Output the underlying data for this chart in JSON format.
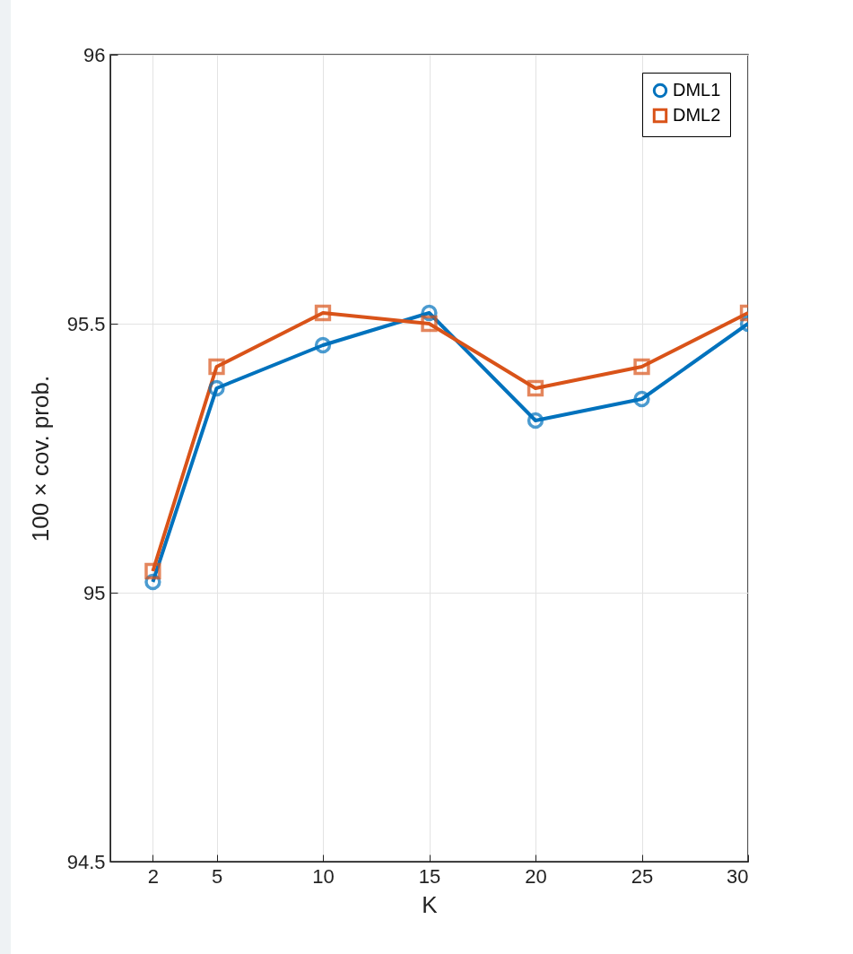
{
  "chart_data": {
    "type": "line",
    "xlabel": "K",
    "ylabel": "100 × cov. prob.",
    "x": [
      2,
      5,
      10,
      15,
      20,
      25,
      30
    ],
    "series": [
      {
        "name": "DML1",
        "color": "#0072bd",
        "marker": "circle",
        "values": [
          95.02,
          95.38,
          95.46,
          95.52,
          95.32,
          95.36,
          95.5
        ]
      },
      {
        "name": "DML2",
        "color": "#d95319",
        "marker": "square",
        "values": [
          95.04,
          95.42,
          95.52,
          95.5,
          95.38,
          95.42,
          95.52
        ]
      }
    ],
    "xlim": [
      0,
      30
    ],
    "xticks": [
      2,
      5,
      10,
      15,
      20,
      25,
      30
    ],
    "ylim": [
      94.5,
      96
    ],
    "yticks": [
      94.5,
      95,
      95.5,
      96
    ],
    "grid": true,
    "legend": "top right",
    "line_style": "solid"
  }
}
